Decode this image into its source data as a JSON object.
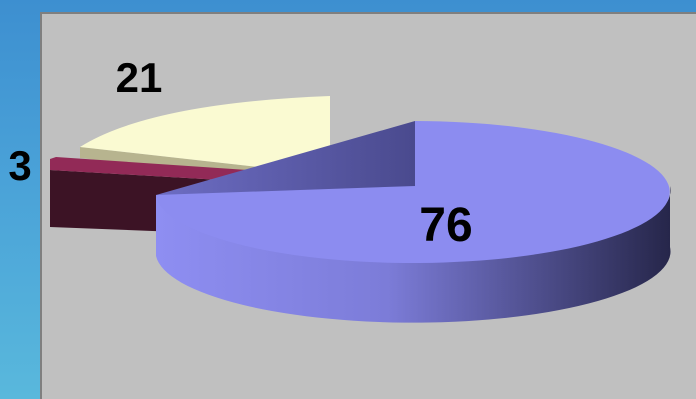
{
  "chart_data": {
    "type": "pie",
    "style": "3d-exploded",
    "slices": [
      {
        "label": "76",
        "value": 76,
        "color": "#8c8cf0"
      },
      {
        "label": "3",
        "value": 3,
        "color": "#5c1a34"
      },
      {
        "label": "21",
        "value": 21,
        "color": "#fafad2"
      }
    ],
    "title": "",
    "legend": "none"
  }
}
